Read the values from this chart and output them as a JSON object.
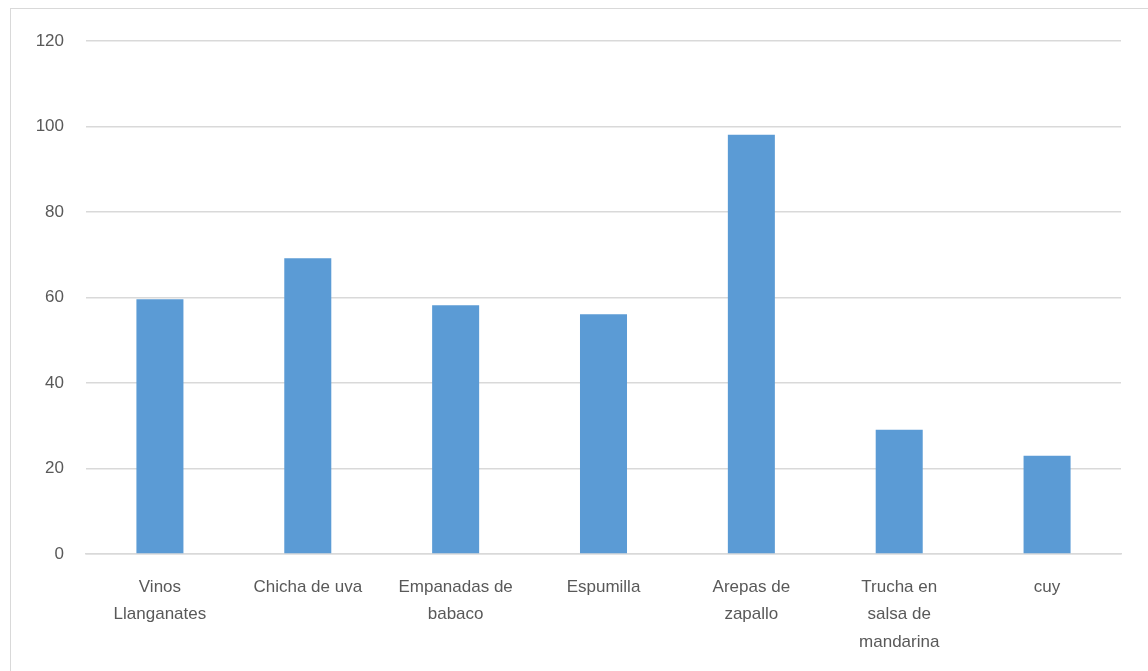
{
  "chart_data": {
    "type": "bar",
    "categories": [
      "Vinos Llanganates",
      "Chicha de uva",
      "Empanadas de babaco",
      "Espumilla",
      "Arepas de zapallo",
      "Trucha en salsa de mandarina",
      "cuy"
    ],
    "values": [
      59.6,
      69.2,
      58.2,
      56.1,
      98.1,
      29.1,
      23.0
    ],
    "color": "#5b9bd5",
    "ylim": [
      0,
      120
    ],
    "yticks": [
      0,
      20,
      40,
      60,
      80,
      100,
      120
    ],
    "grid": "y",
    "legend": false
  }
}
